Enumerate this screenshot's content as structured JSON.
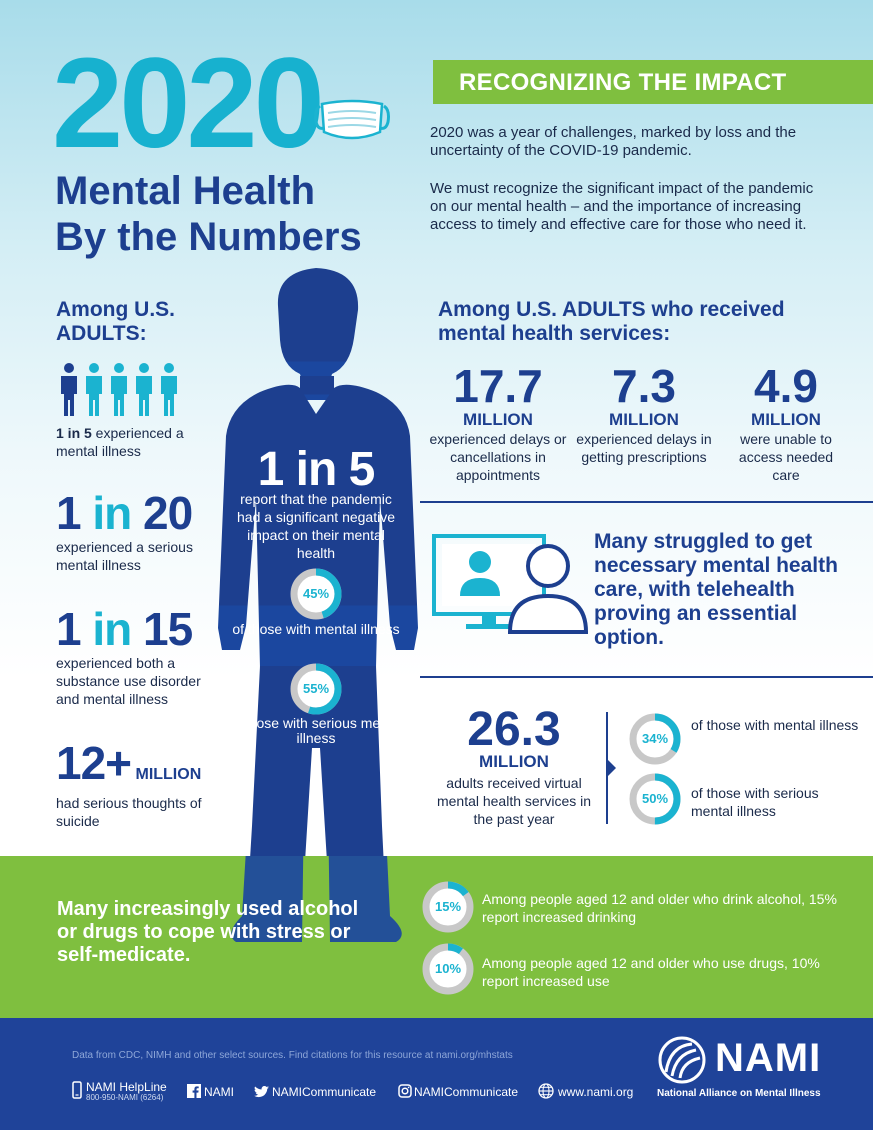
{
  "header": {
    "year": "2020",
    "title_line1": "Mental Health",
    "title_line2": "By the Numbers"
  },
  "impact": {
    "banner": "RECOGNIZING THE IMPACT",
    "para1": "2020 was a year of challenges, marked by loss and the uncertainty of the COVID-19 pandemic.",
    "para2": "We must recognize the significant impact of the pandemic on our mental health – and the importance of increasing access to timely and effective care for those who need it."
  },
  "left": {
    "heading": "Among U.S. ADULTS:",
    "stat1": {
      "bold": "1 in 5",
      "text": " experienced a mental illness",
      "highlight_people": 1,
      "total_people": 5
    },
    "stat2": {
      "num": "1",
      "mid": " in ",
      "den": "20",
      "text": "experienced a serious mental illness"
    },
    "stat3": {
      "num": "1",
      "mid": " in ",
      "den": "15",
      "text": "experienced both a substance use disorder and mental illness"
    },
    "stat4": {
      "num": "12+",
      "unit": "MILLION",
      "text": "had serious thoughts of suicide"
    }
  },
  "center": {
    "big": "1 in 5",
    "desc": "report that the pandemic had a significant negative impact on their mental health",
    "donut1": {
      "pct": 45,
      "label": "45%",
      "text": "of those with mental illness"
    },
    "donut2": {
      "pct": 55,
      "label": "55%",
      "text": "of those with serious mental illness"
    }
  },
  "services": {
    "heading_bold": "Among U.S. ADULTS",
    "heading_rest": " who received mental health services:",
    "items": [
      {
        "num": "17.7",
        "unit": "MILLION",
        "desc": "experienced delays or cancellations in appointments"
      },
      {
        "num": "7.3",
        "unit": "MILLION",
        "desc": "experienced delays in getting prescriptions"
      },
      {
        "num": "4.9",
        "unit": "MILLION",
        "desc": "were unable to access needed care"
      }
    ]
  },
  "telehealth": {
    "text": "Many struggled to get necessary mental health care, with telehealth proving an essential option."
  },
  "virtual": {
    "num": "26.3",
    "unit": "MILLION",
    "desc": "adults received virtual mental health services in the past year",
    "donut1": {
      "pct": 34,
      "label": "34%",
      "text": "of those with mental illness"
    },
    "donut2": {
      "pct": 50,
      "label": "50%",
      "text": "of those with serious mental illness"
    }
  },
  "substance": {
    "text": "Many increasingly used alcohol or drugs to cope with stress or self-medicate.",
    "donut1": {
      "pct": 15,
      "label": "15%",
      "text": "Among people aged 12 and older who drink alcohol, 15% report increased drinking"
    },
    "donut2": {
      "pct": 10,
      "label": "10%",
      "text": "Among people aged 12 and older who use drugs, 10% report increased use"
    }
  },
  "footer": {
    "sources": "Data from CDC, NIMH and other select sources. Find citations for this resource at nami.org/mhstats",
    "helpline": "NAMI HelpLine",
    "helpline_number": "800-950-NAMI (6264)",
    "facebook": "NAMI",
    "twitter": "NAMICommunicate",
    "instagram": "NAMICommunicate",
    "website": "www.nami.org",
    "logo_word": "NAMI",
    "logo_full": "National Alliance on Mental Illness"
  },
  "colors": {
    "navy": "#1d3f8f",
    "teal": "#1bb3d0",
    "green": "#7fbf3f",
    "footer_blue": "#1f4399",
    "donut_track": "#c8c8c8"
  },
  "icons": [
    "face-mask-icon",
    "person-icon",
    "telehealth-monitor-icon",
    "phone-icon",
    "facebook-icon",
    "twitter-icon",
    "instagram-icon",
    "globe-icon",
    "nami-logo-icon"
  ]
}
